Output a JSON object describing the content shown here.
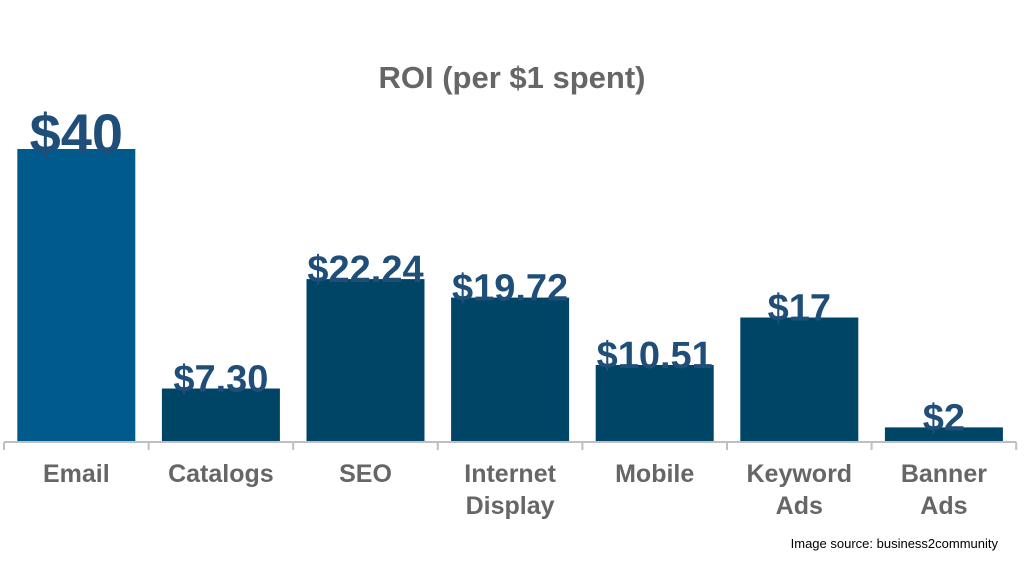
{
  "chart_data": {
    "type": "bar",
    "title": "ROI (per $1 spent)",
    "categories": [
      [
        "Email"
      ],
      [
        "Catalogs"
      ],
      [
        "SEO"
      ],
      [
        "Internet",
        "Display"
      ],
      [
        "Mobile"
      ],
      [
        "Keyword",
        "Ads"
      ],
      [
        "Banner",
        "Ads"
      ]
    ],
    "values": [
      40,
      7.3,
      22.24,
      19.72,
      10.51,
      17,
      2
    ],
    "data_labels": [
      "$40",
      "$7.30",
      "$22.24",
      "$19.72",
      "$10.51",
      "$17",
      "$2"
    ],
    "ylim": [
      0,
      40
    ],
    "xlabel": "",
    "ylabel": "",
    "grid": false,
    "legend": "none"
  },
  "colors": {
    "highlight_bar": "#005b8c",
    "bar": "#004466",
    "label": "#1f4e79",
    "axis": "#bfbfbf",
    "title": "#666666"
  },
  "source_note": "Image source: business2community"
}
